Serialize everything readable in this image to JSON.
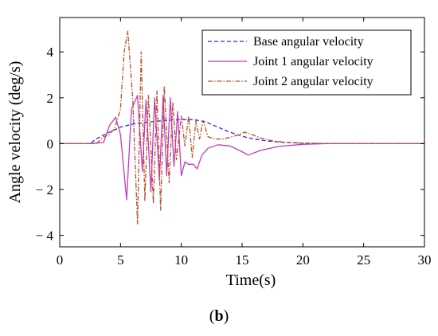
{
  "caption": {
    "open": "(",
    "letter": "b",
    "close": ")"
  },
  "chart_data": {
    "type": "line",
    "title": "",
    "xlabel": "Time(s)",
    "ylabel": "Angle velocity (deg/s)",
    "xlim": [
      0,
      30
    ],
    "ylim": [
      -4.5,
      5.5
    ],
    "xticks": [
      0,
      5,
      10,
      15,
      20,
      25,
      30
    ],
    "yticks": [
      -4,
      -2,
      0,
      2,
      4
    ],
    "grid": false,
    "legend_position": "top-right",
    "series": [
      {
        "name": "Base angular velocity",
        "color": "#2b2bd9",
        "style": "dashed",
        "x": [
          0,
          2.5,
          3,
          3.5,
          4,
          4.5,
          5,
          6,
          7,
          8,
          9,
          10,
          11,
          12,
          13,
          14,
          15,
          16,
          17,
          18,
          19,
          20,
          21,
          22,
          30
        ],
        "y": [
          0,
          0,
          0.2,
          0.35,
          0.48,
          0.6,
          0.72,
          0.85,
          0.92,
          0.98,
          1.02,
          1.05,
          1.05,
          0.95,
          0.72,
          0.5,
          0.32,
          0.2,
          0.12,
          0.07,
          0.04,
          0.02,
          0.01,
          0,
          0
        ]
      },
      {
        "name": "Joint 1 angular velocity",
        "color": "#c03cc0",
        "style": "solid",
        "x": [
          0,
          2.5,
          3.6,
          4.1,
          4.6,
          5.0,
          5.5,
          5.9,
          6.4,
          6.8,
          7.1,
          7.5,
          7.8,
          8.2,
          8.5,
          8.8,
          9.1,
          9.4,
          9.7,
          10.0,
          10.3,
          10.6,
          11.0,
          11.3,
          11.7,
          12.2,
          13,
          14,
          15,
          15.5,
          16.5,
          18,
          20,
          22,
          30
        ],
        "y": [
          0,
          0,
          0.05,
          0.8,
          1.15,
          0.4,
          -2.45,
          1.5,
          2.1,
          -1.2,
          1.9,
          -2.1,
          2.0,
          -1.6,
          2.1,
          -1.4,
          2.0,
          -1.0,
          1.4,
          -1.4,
          -0.8,
          -0.9,
          -0.9,
          -1.1,
          -0.5,
          -0.2,
          -0.05,
          -0.1,
          -0.35,
          -0.5,
          -0.3,
          -0.12,
          -0.03,
          0,
          0
        ]
      },
      {
        "name": "Joint 2 angular velocity",
        "color": "#b5502a",
        "style": "dashdot",
        "x": [
          0,
          3.0,
          3.6,
          4.1,
          4.5,
          5.0,
          5.3,
          5.6,
          6.0,
          6.4,
          6.7,
          7.0,
          7.3,
          7.7,
          8.0,
          8.3,
          8.6,
          9.0,
          9.3,
          9.6,
          10.0,
          10.3,
          10.6,
          10.9,
          11.2,
          11.5,
          11.8,
          12.2,
          12.8,
          13.5,
          14.5,
          15.2,
          15.8,
          16.5,
          17.5,
          18.5,
          20,
          22,
          30
        ],
        "y": [
          0,
          0,
          0.3,
          0.4,
          0.65,
          1.5,
          4.0,
          4.9,
          2.0,
          -3.5,
          4.0,
          -2.5,
          2.1,
          -2.6,
          2.3,
          -2.9,
          2.5,
          -1.7,
          1.8,
          -0.7,
          1.2,
          -0.1,
          1.2,
          -0.6,
          1.0,
          0.2,
          1.0,
          0.3,
          0.2,
          0.2,
          0.35,
          0.5,
          0.4,
          0.25,
          0.12,
          0.06,
          0.02,
          0,
          0
        ]
      }
    ]
  }
}
